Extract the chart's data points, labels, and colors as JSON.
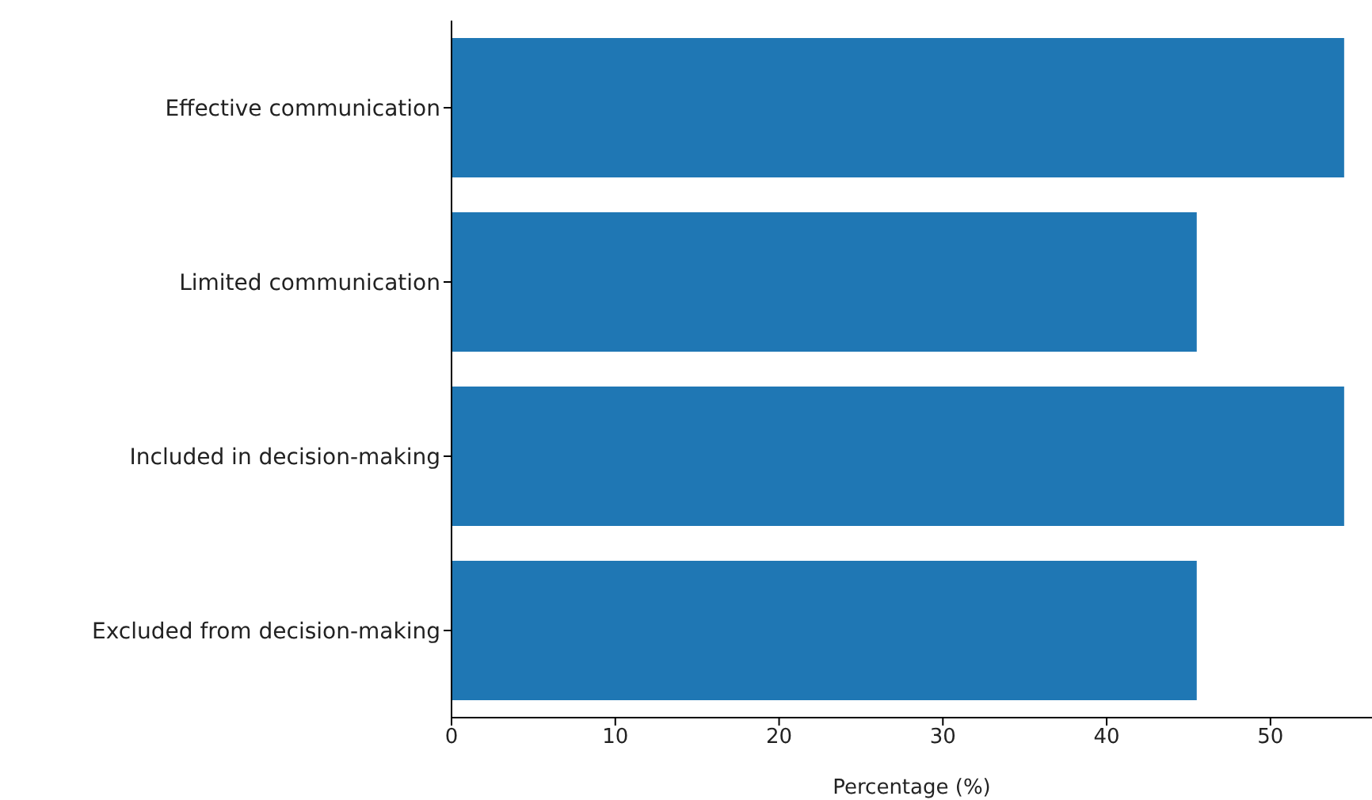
{
  "chart_data": {
    "type": "bar",
    "orientation": "horizontal",
    "categories": [
      "Effective communication",
      "Limited communication",
      "Included in decision-making",
      "Excluded from decision-making"
    ],
    "values": [
      54.5,
      45.5,
      54.5,
      45.5
    ],
    "color": "#1f77b4",
    "xlabel": "Percentage (%)",
    "xlim": [
      0,
      56.2
    ],
    "xticks": [
      0,
      10,
      20,
      30,
      40,
      50
    ],
    "grid": false,
    "legend": false
  }
}
